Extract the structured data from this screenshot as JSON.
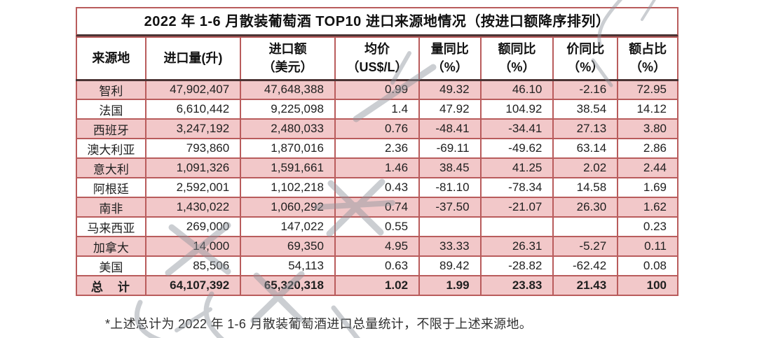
{
  "table": {
    "title": "2022 年 1-6 月散装葡萄酒 TOP10 进口来源地情况（按进口额降序排列）",
    "columns": [
      {
        "label": "来源地",
        "sub": ""
      },
      {
        "label": "进口量(升)",
        "sub": ""
      },
      {
        "label": "进口额",
        "sub": "（美元）"
      },
      {
        "label": "均价",
        "sub": "（US$/L）"
      },
      {
        "label": "量同比",
        "sub": "（%）"
      },
      {
        "label": "额同比",
        "sub": "（%）"
      },
      {
        "label": "价同比",
        "sub": "（%）"
      },
      {
        "label": "额占比",
        "sub": "（%）"
      }
    ],
    "rows": [
      [
        "智利",
        "47,902,407",
        "47,648,388",
        "0.99",
        "49.32",
        "46.10",
        "-2.16",
        "72.95"
      ],
      [
        "法国",
        "6,610,442",
        "9,225,098",
        "1.4",
        "47.92",
        "104.92",
        "38.54",
        "14.12"
      ],
      [
        "西班牙",
        "3,247,192",
        "2,480,033",
        "0.76",
        "-48.41",
        "-34.41",
        "27.13",
        "3.80"
      ],
      [
        "澳大利亚",
        "793,860",
        "1,870,016",
        "2.36",
        "-69.11",
        "-49.62",
        "63.14",
        "2.86"
      ],
      [
        "意大利",
        "1,091,326",
        "1,591,661",
        "1.46",
        "38.45",
        "41.25",
        "2.02",
        "2.44"
      ],
      [
        "阿根廷",
        "2,592,001",
        "1,102,218",
        "0.43",
        "-81.10",
        "-78.34",
        "14.58",
        "1.69"
      ],
      [
        "南非",
        "1,430,022",
        "1,060,292",
        "0.74",
        "-37.50",
        "-21.07",
        "26.30",
        "1.62"
      ],
      [
        "马来西亚",
        "269,000",
        "147,022",
        "0.55",
        "",
        "",
        "",
        "0.23"
      ],
      [
        "加拿大",
        "14,000",
        "69,350",
        "4.95",
        "33.33",
        "26.31",
        "-5.27",
        "0.11"
      ],
      [
        "美国",
        "85,506",
        "54,113",
        "0.63",
        "89.42",
        "-28.82",
        "-62.42",
        "0.08"
      ]
    ],
    "total_row": [
      "总　计",
      "64,107,392",
      "65,320,318",
      "1.02",
      "1.99",
      "23.83",
      "21.43",
      "100"
    ],
    "footnote": "*上述总计为 2022 年 1-6 月散装葡萄酒进口总量统计，不限于上述来源地。"
  },
  "colors": {
    "border_red": "#b95c5c",
    "header_rule_dark": "#4b3434",
    "row_pink": "#f2c8c9",
    "text": "#1f1f1f",
    "watermark_gray": "#8e959c"
  }
}
